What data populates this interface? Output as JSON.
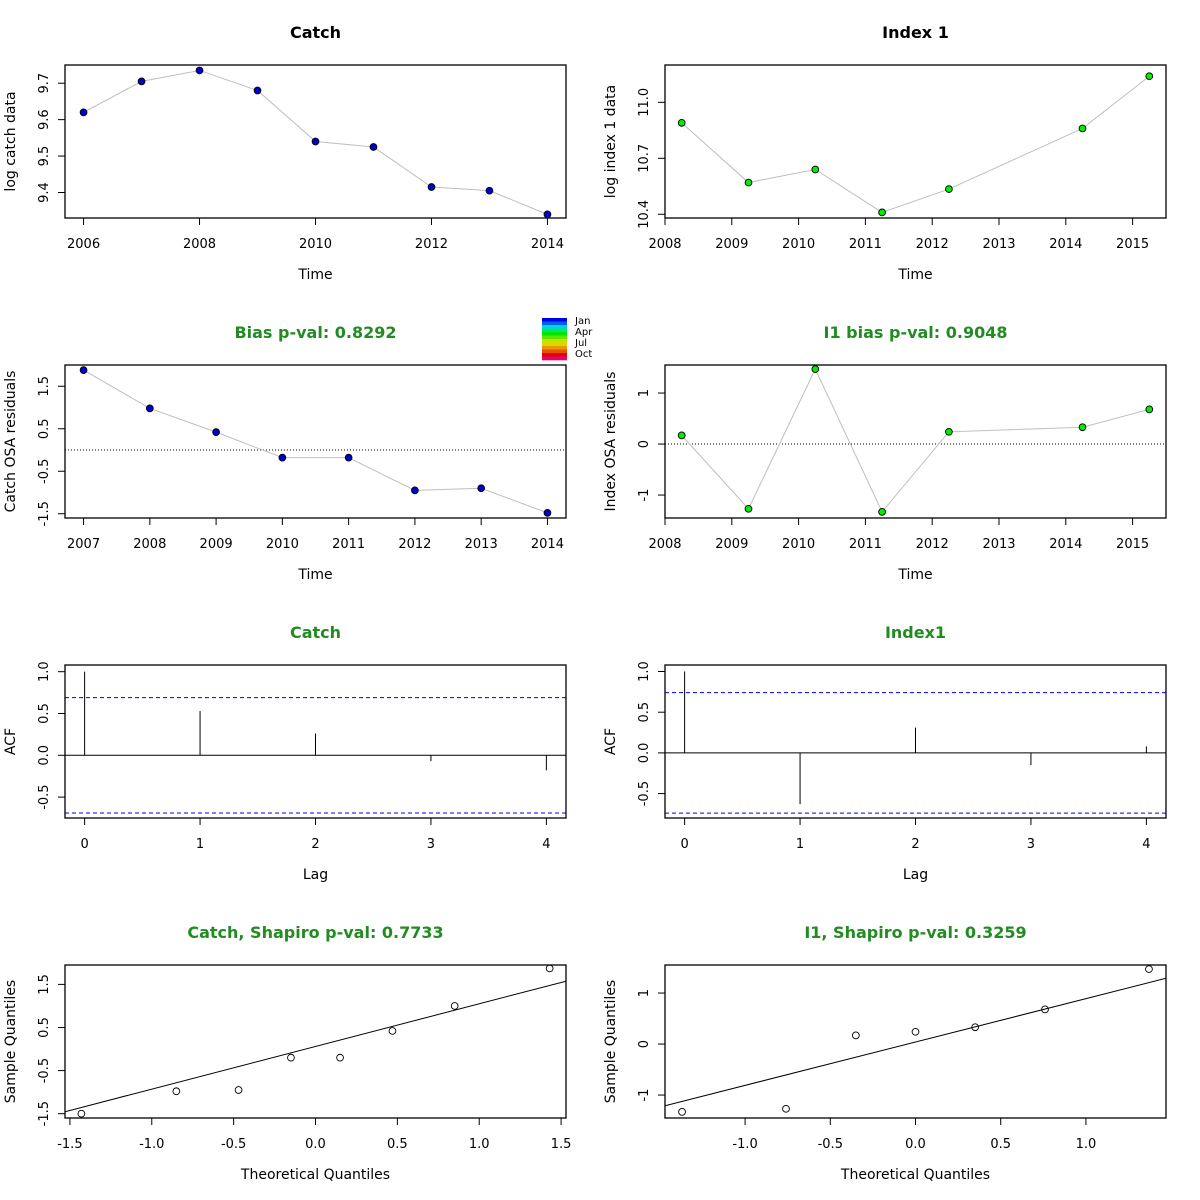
{
  "colors": {
    "catch_point": "#0000CD",
    "index_point": "#00EE00",
    "subtitle": "#228B22",
    "acf_bound": "#0000FF",
    "connector": "#BEBEBE"
  },
  "legend": {
    "labels": [
      "Jan",
      "Apr",
      "Jul",
      "Oct"
    ]
  },
  "chart_data": [
    {
      "type": "line",
      "title": "Catch",
      "xlabel": "Time",
      "ylabel": "log catch data",
      "x": [
        2006,
        2007,
        2008,
        2009,
        2010,
        2011,
        2012,
        2013,
        2014
      ],
      "y": [
        9.62,
        9.705,
        9.735,
        9.68,
        9.54,
        9.525,
        9.415,
        9.405,
        9.34
      ],
      "xlim": [
        2005.68,
        2014.32
      ],
      "ylim": [
        9.33,
        9.75
      ],
      "xticks": [
        2006,
        2008,
        2010,
        2012,
        2014
      ],
      "yticks": [
        9.4,
        9.5,
        9.6,
        9.7
      ]
    },
    {
      "type": "line",
      "title": "Index 1",
      "xlabel": "Time",
      "ylabel": "log index 1 data",
      "x": [
        2008.25,
        2009.25,
        2010.25,
        2011.25,
        2012.25,
        2014.25,
        2015.25
      ],
      "y": [
        10.89,
        10.57,
        10.64,
        10.41,
        10.535,
        10.86,
        11.14
      ],
      "xlim": [
        2008,
        2015.5
      ],
      "ylim": [
        10.38,
        11.2
      ],
      "xticks": [
        2008,
        2009,
        2010,
        2011,
        2012,
        2013,
        2014,
        2015
      ],
      "yticks": [
        10.4,
        10.7,
        11.0
      ]
    },
    {
      "type": "line",
      "title": "Bias p-val: 0.8292",
      "xlabel": "Time",
      "ylabel": "Catch OSA residuals",
      "x": [
        2007,
        2008,
        2009,
        2010,
        2011,
        2012,
        2013,
        2014
      ],
      "y": [
        1.88,
        0.98,
        0.42,
        -0.18,
        -0.18,
        -0.95,
        -0.9,
        -1.48
      ],
      "xlim": [
        2006.72,
        2014.28
      ],
      "ylim": [
        -1.6,
        2.0
      ],
      "xticks": [
        2007,
        2008,
        2009,
        2010,
        2011,
        2012,
        2013,
        2014
      ],
      "yticks": [
        -1.5,
        -0.5,
        0.5,
        1.5
      ],
      "ref_line": 0
    },
    {
      "type": "line",
      "title": "I1 bias p-val: 0.9048",
      "xlabel": "Time",
      "ylabel": "Index OSA residuals",
      "x": [
        2008.25,
        2009.25,
        2010.25,
        2011.25,
        2012.25,
        2014.25,
        2015.25
      ],
      "y": [
        0.17,
        -1.27,
        1.47,
        -1.33,
        0.24,
        0.33,
        0.68
      ],
      "xlim": [
        2008,
        2015.5
      ],
      "ylim": [
        -1.45,
        1.55
      ],
      "xticks": [
        2008,
        2009,
        2010,
        2011,
        2012,
        2013,
        2014,
        2015
      ],
      "yticks": [
        -1.0,
        0.0,
        1.0
      ],
      "ref_line": 0
    },
    {
      "type": "bar",
      "title": "Catch",
      "xlabel": "Lag",
      "ylabel": "ACF",
      "x": [
        0,
        1,
        2,
        3,
        4
      ],
      "y": [
        1.0,
        0.53,
        0.26,
        -0.07,
        -0.18
      ],
      "bound": 0.69,
      "xlim": [
        -0.17,
        4.17
      ],
      "ylim": [
        -0.75,
        1.08
      ],
      "xticks": [
        0,
        1,
        2,
        3,
        4
      ],
      "yticks": [
        -0.5,
        0.0,
        0.5,
        1.0
      ]
    },
    {
      "type": "bar",
      "title": "Index1",
      "xlabel": "Lag",
      "ylabel": "ACF",
      "x": [
        0,
        1,
        2,
        3,
        4
      ],
      "y": [
        1.0,
        -0.63,
        0.31,
        -0.15,
        0.08
      ],
      "bound": 0.74,
      "xlim": [
        -0.17,
        4.17
      ],
      "ylim": [
        -0.8,
        1.08
      ],
      "xticks": [
        0,
        1,
        2,
        3,
        4
      ],
      "yticks": [
        -0.5,
        0.0,
        0.5,
        1.0
      ]
    },
    {
      "type": "scatter",
      "title": "Catch, Shapiro p-val: 0.7733",
      "xlabel": "Theoretical Quantiles",
      "ylabel": "Sample Quantiles",
      "x": [
        -1.43,
        -0.85,
        -0.47,
        -0.15,
        0.15,
        0.47,
        0.85,
        1.43
      ],
      "y": [
        -1.5,
        -0.98,
        -0.95,
        -0.2,
        -0.2,
        0.42,
        1.0,
        1.87
      ],
      "qq_line": {
        "intercept": 0.06,
        "slope": 0.99
      },
      "xlim": [
        -1.53,
        1.53
      ],
      "ylim": [
        -1.6,
        1.95
      ],
      "xticks": [
        -1.5,
        -1.0,
        -0.5,
        0.0,
        0.5,
        1.0,
        1.5
      ],
      "yticks": [
        -1.5,
        -0.5,
        0.5,
        1.5
      ]
    },
    {
      "type": "scatter",
      "title": "I1, Shapiro p-val: 0.3259",
      "xlabel": "Theoretical Quantiles",
      "ylabel": "Sample Quantiles",
      "x": [
        -1.37,
        -0.76,
        -0.35,
        0.0,
        0.35,
        0.76,
        1.37
      ],
      "y": [
        -1.33,
        -1.27,
        0.17,
        0.24,
        0.33,
        0.68,
        1.47
      ],
      "qq_line": {
        "intercept": 0.04,
        "slope": 0.85
      },
      "xlim": [
        -1.47,
        1.47
      ],
      "ylim": [
        -1.45,
        1.55
      ],
      "xticks": [
        -1.0,
        -0.5,
        0.0,
        0.5,
        1.0
      ],
      "yticks": [
        -1.0,
        0.0,
        1.0
      ]
    }
  ]
}
